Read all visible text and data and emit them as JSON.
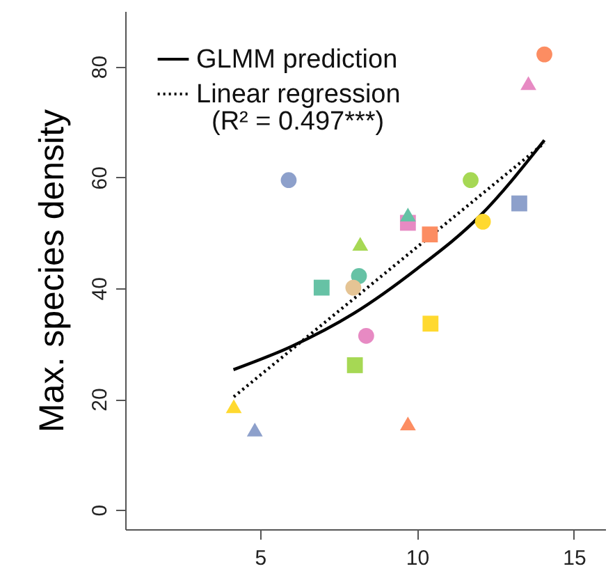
{
  "chart_data": {
    "type": "scatter",
    "ylabel": "Max. species density",
    "xlim": [
      0.7,
      16
    ],
    "ylim": [
      -3.5,
      90
    ],
    "xticks": [
      5,
      10,
      15
    ],
    "yticks": [
      0,
      20,
      40,
      60,
      80
    ],
    "grid": false,
    "legend": "top left",
    "annotations": [
      "(R² = 0.497***)"
    ],
    "series": [
      {
        "marker": "circle",
        "x": [
          14.06,
          5.91,
          11.71,
          12.1,
          8.15,
          7.97,
          8.38
        ],
        "values": [
          82.2,
          59.5,
          59.5,
          52,
          42.2,
          40.1,
          31.4
        ],
        "colors": [
          "#fc8d62",
          "#8da0cb",
          "#a6d854",
          "#ffd92f",
          "#66c2a5",
          "#e5c494",
          "#e78ac3"
        ]
      },
      {
        "marker": "square",
        "x": [
          13.26,
          9.71,
          10.41,
          6.96,
          10.43,
          8.02
        ],
        "values": [
          55.3,
          51.8,
          49.7,
          40.1,
          33.6,
          26.1
        ],
        "colors": [
          "#8da0cb",
          "#e78ac3",
          "#fc8d62",
          "#66c2a5",
          "#ffd92f",
          "#a6d854"
        ]
      },
      {
        "marker": "triangle",
        "x": [
          13.55,
          9.71,
          8.19,
          4.16,
          4.83,
          9.71
        ],
        "values": [
          77,
          53.3,
          48,
          18.7,
          14.5,
          15.6
        ],
        "colors": [
          "#e78ac3",
          "#66c2a5",
          "#a6d854",
          "#ffd92f",
          "#8da0cb",
          "#fc8d62"
        ]
      },
      {
        "type": "line",
        "name": "GLMM prediction",
        "color": "#000000",
        "line_style": "solid",
        "marker": "none",
        "x": [
          4.15,
          6,
          8,
          10,
          12,
          14.06
        ],
        "values": [
          25.3,
          29.5,
          35.5,
          43.5,
          53,
          66.7
        ]
      },
      {
        "type": "line",
        "name": "Linear regression",
        "color": "#000000",
        "line_style": "dotted",
        "marker": "none",
        "x": [
          4.16,
          14.06
        ],
        "values": [
          20.4,
          66.2
        ]
      }
    ]
  }
}
